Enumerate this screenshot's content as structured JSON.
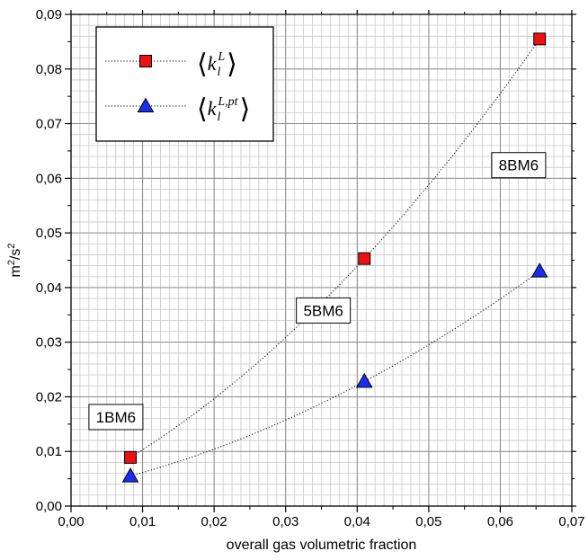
{
  "chart_data": {
    "type": "scatter",
    "xlabel": "overall gas volumetric fraction",
    "ylabel": "m²/s²",
    "xlim": [
      0.0,
      0.07
    ],
    "ylim": [
      0.0,
      0.09
    ],
    "grid": true,
    "x_major_ticks": [
      "0,00",
      "0,01",
      "0,02",
      "0,03",
      "0,04",
      "0,05",
      "0,06",
      "0,07"
    ],
    "y_major_ticks": [
      "0,00",
      "0,01",
      "0,02",
      "0,03",
      "0,04",
      "0,05",
      "0,06",
      "0,07",
      "0,08",
      "0,09"
    ],
    "legend_position": "top-left",
    "series": [
      {
        "name": "⟨k_l^L⟩",
        "marker": "square",
        "color": "#ee1111",
        "x": [
          0.0083,
          0.041,
          0.0655
        ],
        "y": [
          0.0089,
          0.0453,
          0.0855
        ]
      },
      {
        "name": "⟨k_l^{L,pt}⟩",
        "marker": "triangle",
        "color": "#1a2cf0",
        "x": [
          0.0083,
          0.041,
          0.0655
        ],
        "y": [
          0.0055,
          0.0228,
          0.043
        ]
      }
    ],
    "annotations": [
      {
        "text": "1BM6",
        "x": 0.0025,
        "y": 0.0163
      },
      {
        "text": "5BM6",
        "x": 0.0315,
        "y": 0.0358
      },
      {
        "text": "8BM6",
        "x": 0.0588,
        "y": 0.0624
      }
    ]
  }
}
